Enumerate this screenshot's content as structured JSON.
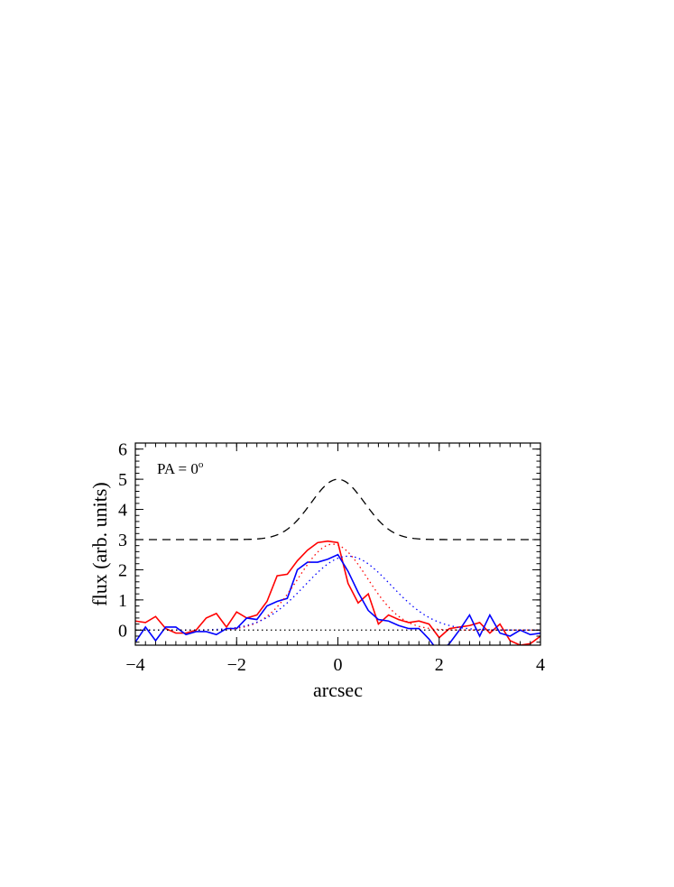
{
  "chart_data": {
    "type": "line",
    "xlabel": "arcsec",
    "ylabel": "flux (arb. units)",
    "annotation": "PA = 0",
    "annotation_sup": "o",
    "xlim": [
      -4,
      4
    ],
    "ylim": [
      -0.5,
      6.2
    ],
    "xticks": [
      -4,
      -2,
      0,
      2,
      4
    ],
    "yticks": [
      0,
      1,
      2,
      3,
      4,
      5,
      6
    ],
    "grid": false,
    "series": [
      {
        "color": "#ff0000",
        "style": "solid",
        "x": [
          -4.0,
          -3.8,
          -3.6,
          -3.4,
          -3.2,
          -3.0,
          -2.8,
          -2.6,
          -2.4,
          -2.2,
          -2.0,
          -1.8,
          -1.6,
          -1.4,
          -1.2,
          -1.0,
          -0.8,
          -0.6,
          -0.4,
          -0.2,
          0.0,
          0.2,
          0.4,
          0.6,
          0.8,
          1.0,
          1.2,
          1.4,
          1.6,
          1.8,
          2.0,
          2.2,
          2.4,
          2.6,
          2.8,
          3.0,
          3.2,
          3.4,
          3.6,
          3.8,
          4.0
        ],
        "y": [
          0.3,
          0.25,
          0.45,
          0.05,
          -0.1,
          -0.1,
          0.0,
          0.4,
          0.55,
          0.1,
          0.6,
          0.4,
          0.5,
          0.95,
          1.8,
          1.85,
          2.3,
          2.65,
          2.9,
          2.95,
          2.9,
          1.55,
          0.9,
          1.2,
          0.2,
          0.5,
          0.35,
          0.25,
          0.3,
          0.2,
          -0.25,
          0.05,
          0.1,
          0.15,
          0.25,
          -0.1,
          0.2,
          -0.35,
          -0.5,
          -0.45,
          -0.2
        ]
      },
      {
        "color": "#0000ff",
        "style": "solid",
        "x": [
          -4.0,
          -3.8,
          -3.6,
          -3.4,
          -3.2,
          -3.0,
          -2.8,
          -2.6,
          -2.4,
          -2.2,
          -2.0,
          -1.8,
          -1.6,
          -1.4,
          -1.2,
          -1.0,
          -0.8,
          -0.6,
          -0.4,
          -0.2,
          0.0,
          0.2,
          0.4,
          0.6,
          0.8,
          1.0,
          1.2,
          1.4,
          1.6,
          1.8,
          2.0,
          2.2,
          2.4,
          2.6,
          2.8,
          3.0,
          3.2,
          3.4,
          3.6,
          3.8,
          4.0
        ],
        "y": [
          -0.4,
          0.1,
          -0.35,
          0.1,
          0.1,
          -0.15,
          -0.05,
          -0.05,
          -0.15,
          0.05,
          0.05,
          0.4,
          0.35,
          0.8,
          0.95,
          1.05,
          2.0,
          2.25,
          2.25,
          2.35,
          2.5,
          1.95,
          1.25,
          0.65,
          0.35,
          0.3,
          0.15,
          0.05,
          0.05,
          -0.3,
          -0.75,
          -0.45,
          0.0,
          0.5,
          -0.2,
          0.5,
          -0.1,
          -0.2,
          0.0,
          -0.15,
          -0.1
        ]
      },
      {
        "color": "#000000",
        "style": "dashed",
        "peak_x": 0,
        "baseline": 3,
        "amplitude": 2,
        "fwhm": 1.25
      },
      {
        "color": "#ff0000",
        "style": "dotted",
        "peak_x": -0.1,
        "baseline": 0,
        "amplitude": 2.85,
        "fwhm": 1.6
      },
      {
        "color": "#0000ff",
        "style": "dotted",
        "peak_x": 0.2,
        "baseline": 0,
        "amplitude": 2.45,
        "fwhm": 2.0
      },
      {
        "color": "#000000",
        "style": "dotted",
        "peak_x": 0,
        "baseline": 0,
        "amplitude": 0,
        "fwhm": 1
      }
    ]
  }
}
